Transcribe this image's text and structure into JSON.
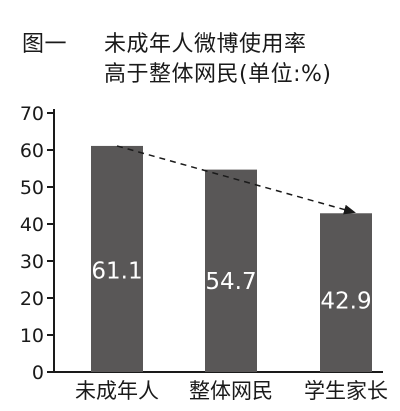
{
  "title": {
    "figure_number": "图一",
    "line1": "未成年人微博使用率",
    "line2": "高于整体网民(单位:%)"
  },
  "chart_data": {
    "type": "bar",
    "categories": [
      "未成年人",
      "整体网民",
      "学生家长"
    ],
    "values": [
      61.1,
      54.7,
      42.9
    ],
    "value_labels": [
      "61.1",
      "54.7",
      "42.9"
    ],
    "title": "未成年人微博使用率高于整体网民(单位:%)",
    "xlabel": "",
    "ylabel": "",
    "ylim": [
      0,
      70
    ],
    "yticks": [
      0,
      10,
      20,
      30,
      40,
      50,
      60,
      70
    ],
    "grid": false,
    "legend": "none",
    "annotation": "dashed trend arrow from top of first bar to top of last bar",
    "colors": {
      "bar": "#595757",
      "bar_text": "#ffffff",
      "axis": "#1a1a1a",
      "arrow": "#1a1a1a"
    }
  }
}
